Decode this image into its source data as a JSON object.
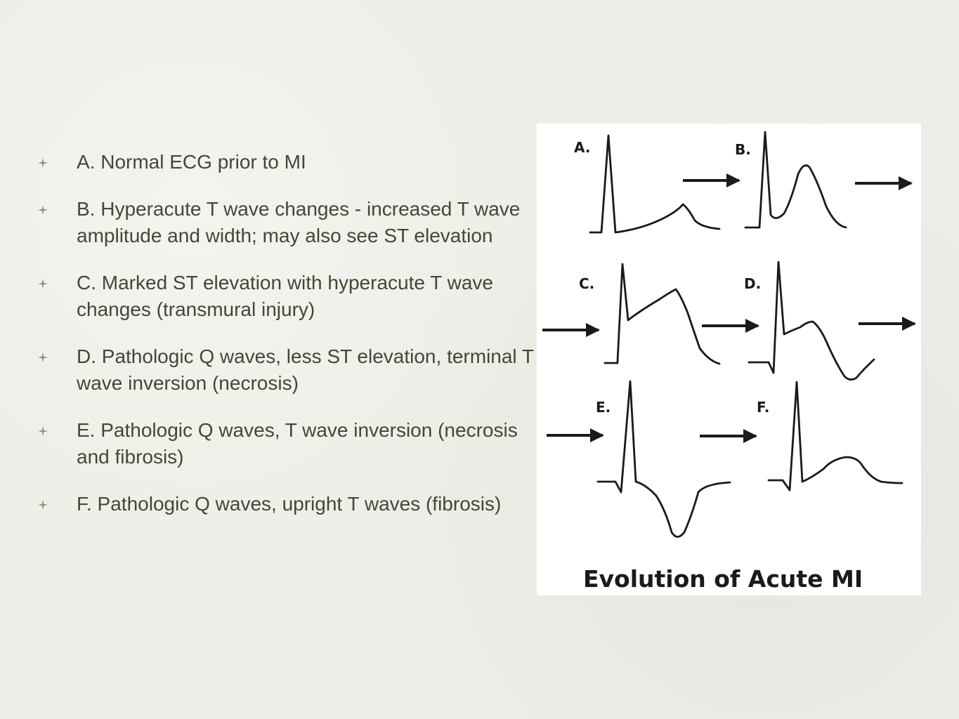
{
  "slide": {
    "bullets": [
      {
        "text": "A. Normal ECG prior to MI"
      },
      {
        "text": "B. Hyperacute T wave changes - increased T wave amplitude and width; may also see ST elevation"
      },
      {
        "text": "C. Marked ST elevation with hyperacute T wave changes (transmural injury)"
      },
      {
        "text": "D. Pathologic Q waves, less ST elevation, terminal T wave inversion (necrosis)"
      },
      {
        "text": "E. Pathologic Q waves, T wave inversion (necrosis and fibrosis)"
      },
      {
        "text": "F. Pathologic Q waves, upright T waves (fibrosis)"
      }
    ],
    "bullet_icon": "four-point-star-icon"
  },
  "figure": {
    "title": "Evolution of Acute MI",
    "panels": [
      {
        "label": "A."
      },
      {
        "label": "B."
      },
      {
        "label": "C."
      },
      {
        "label": "D."
      },
      {
        "label": "E."
      },
      {
        "label": "F."
      }
    ],
    "arrow_icon": "right-arrow-icon"
  },
  "colors": {
    "background": "#efede7",
    "text": "#3d4a34",
    "bullet_marker": "#8a927c",
    "ink": "#1a1a1a"
  }
}
